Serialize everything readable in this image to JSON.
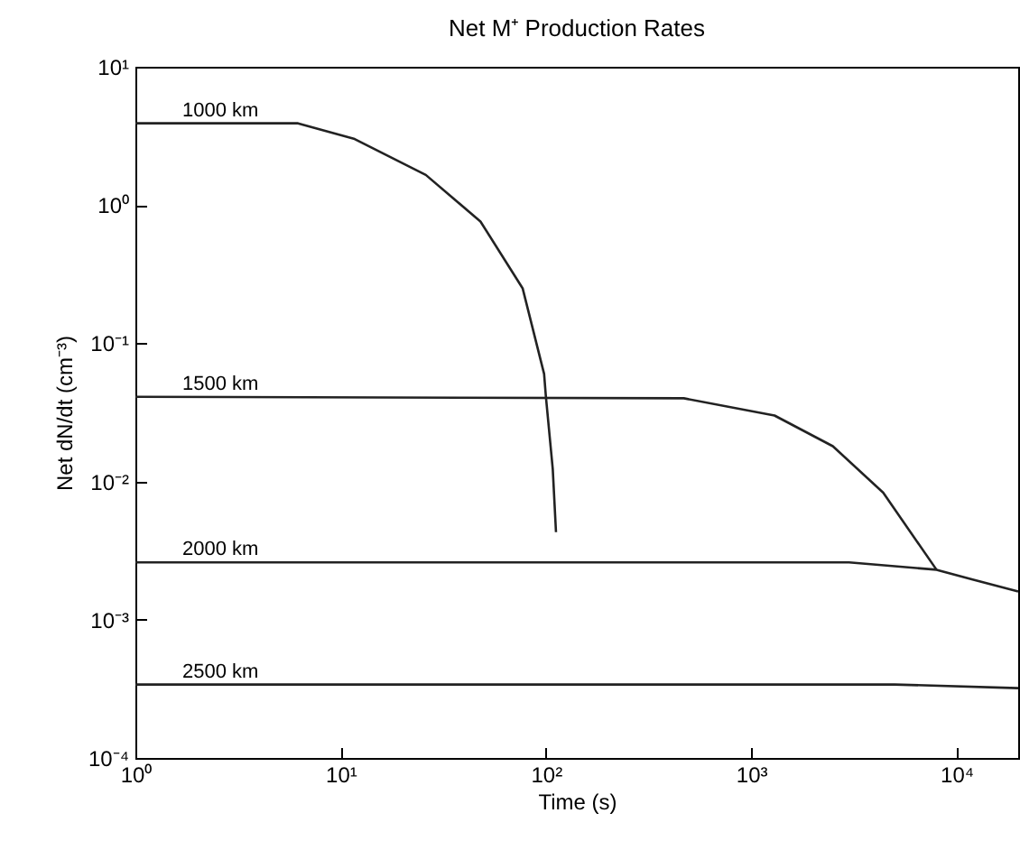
{
  "chart_data": {
    "type": "line",
    "title": "Net M⁺ Production Rates",
    "xlabel": "Time (s)",
    "ylabel": "Net dN/dt (cm⁻³)",
    "log": "xy",
    "grid": false,
    "legend": false,
    "marker": "none",
    "line_style": "solid",
    "xlim": [
      1,
      20000
    ],
    "ylim": [
      0.0001,
      10
    ],
    "xticks": [
      {
        "value": 1,
        "label": "10⁰"
      },
      {
        "value": 10,
        "label": "10¹"
      },
      {
        "value": 100,
        "label": "10²"
      },
      {
        "value": 1000,
        "label": "10³"
      },
      {
        "value": 10000,
        "label": "10⁴"
      }
    ],
    "yticks": [
      {
        "value": 0.0001,
        "label": "10⁻⁴"
      },
      {
        "value": 0.001,
        "label": "10⁻³"
      },
      {
        "value": 0.01,
        "label": "10⁻²"
      },
      {
        "value": 0.1,
        "label": "10⁻¹"
      },
      {
        "value": 1,
        "label": "10⁰"
      },
      {
        "value": 10,
        "label": "10¹"
      }
    ],
    "series": [
      {
        "name": "1000 km",
        "color": "#222222",
        "x": [
          1,
          6.2,
          11.7,
          26,
          48,
          77,
          98,
          100,
          108,
          112
        ],
        "values": [
          3.9,
          3.9,
          3.0,
          1.65,
          0.76,
          0.25,
          0.06,
          0.041,
          0.0123,
          0.0043
        ]
      },
      {
        "name": "1500 km",
        "color": "#222222",
        "x": [
          1,
          470,
          1300,
          2500,
          4400,
          8000
        ],
        "values": [
          0.041,
          0.04,
          0.03,
          0.018,
          0.0083,
          0.0023
        ]
      },
      {
        "name": "2000 km",
        "color": "#222222",
        "x": [
          1,
          3000,
          8000,
          12000,
          20000
        ],
        "values": [
          0.0026,
          0.0026,
          0.0023,
          0.00195,
          0.0016
        ]
      },
      {
        "name": "2500 km",
        "color": "#222222",
        "x": [
          1,
          5000,
          20000
        ],
        "values": [
          0.00034,
          0.00034,
          0.00032
        ]
      }
    ]
  }
}
